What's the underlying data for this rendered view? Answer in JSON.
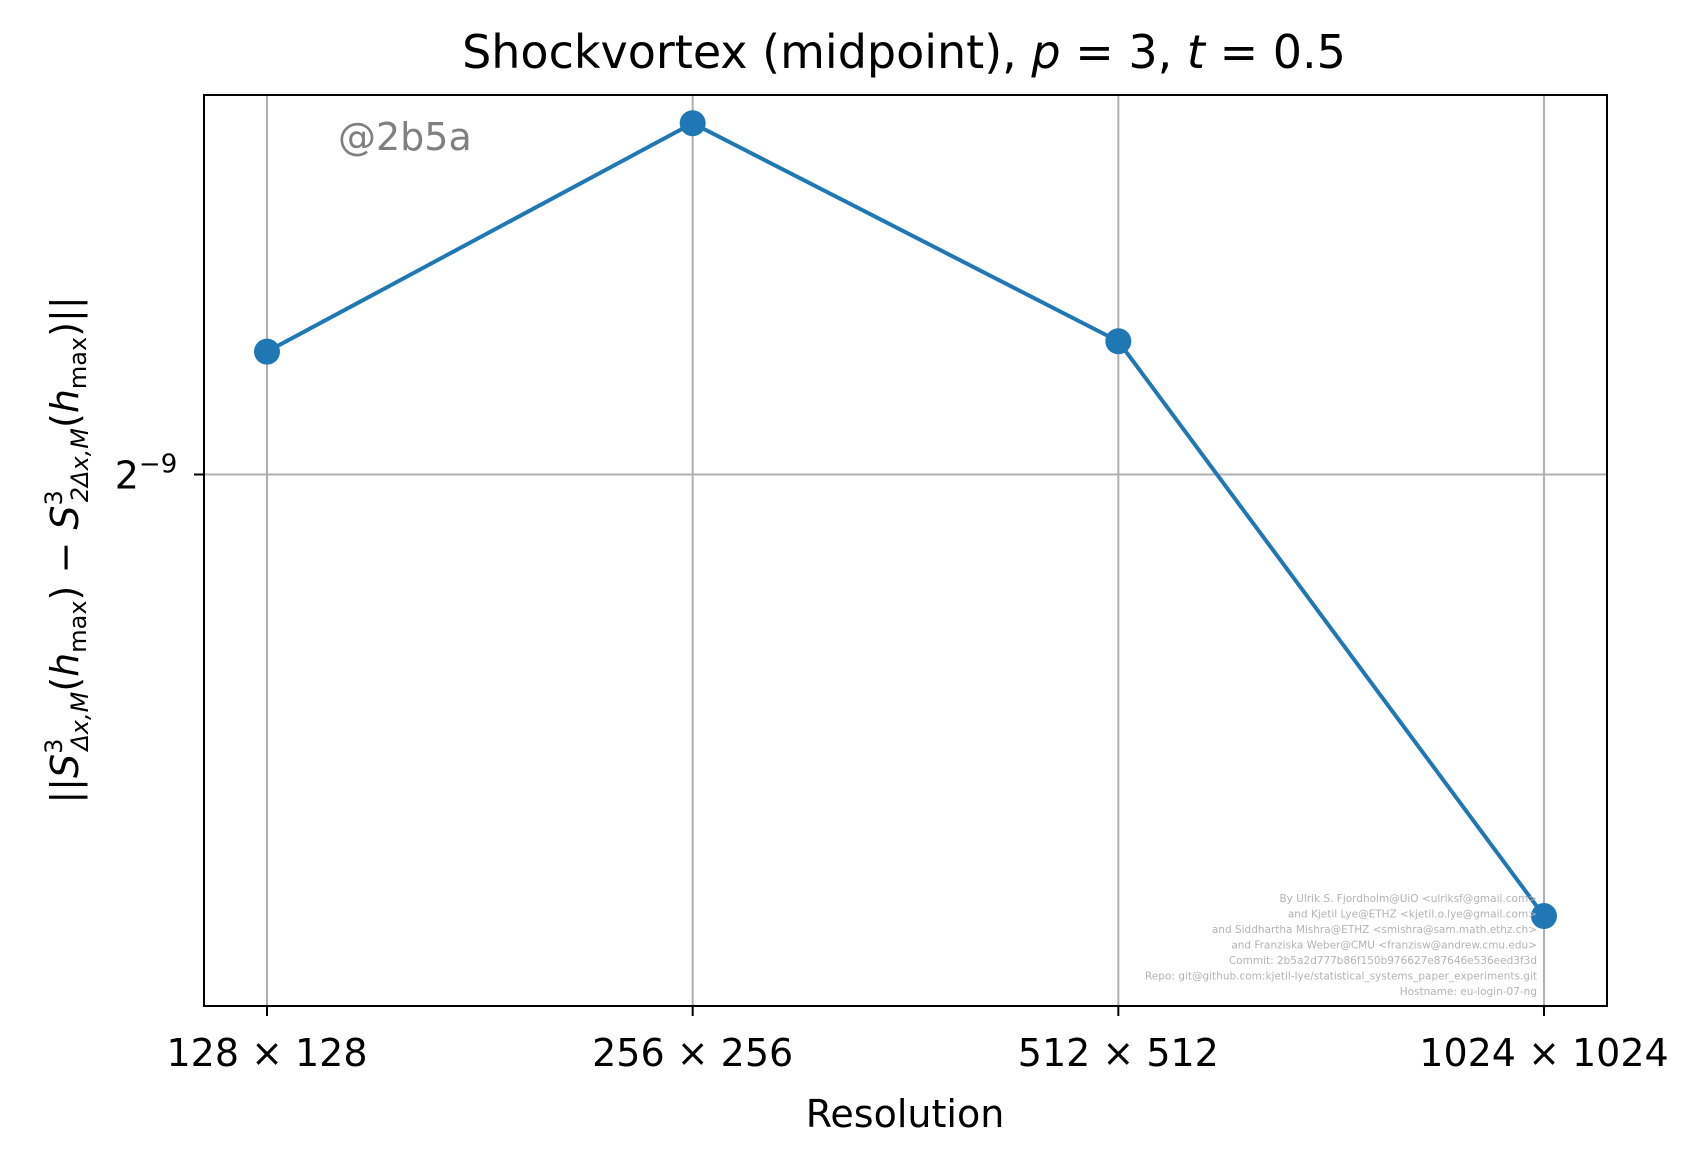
{
  "chart_data": {
    "type": "line",
    "title": "Shockvortex (midpoint), p = 3, t = 0.5",
    "title_parts": {
      "text": "Shockvortex (midpoint), ",
      "p": "p",
      "p_eq": " = 3, ",
      "t": "t",
      "t_eq": " = 0.5"
    },
    "xlabel": "Resolution",
    "ylabel": "||S³Δx,M(hmax) − S³2Δx,M(hmax)||",
    "categories": [
      "128 × 128",
      "256 × 256",
      "512 × 512",
      "1024 × 1024"
    ],
    "y_scale": "log2",
    "yticks": [
      {
        "value": 0.001953125,
        "base": "2",
        "exponent": "−9"
      }
    ],
    "ylim": [
      0.001,
      0.00315
    ],
    "series": [
      {
        "values": [
          0.00228,
          0.00304,
          0.00231,
          0.00112
        ],
        "color": "#1f77b4",
        "marker": "circle"
      }
    ],
    "grid": true,
    "annotation": "@2b5a",
    "credits": [
      "By Ulrik S. Fjordholm@UiO <ulriksf@gmail.com>",
      "and Kjetil Lye@ETHZ <kjetil.o.lye@gmail.com>",
      "and Siddhartha Mishra@ETHZ <smishra@sam.math.ethz.ch>",
      "and Franziska Weber@CMU <franzisw@andrew.cmu.edu>",
      "Commit: 2b5a2d777b86f150b976627e87646e536eed3f3d",
      "Repo: git@github.com:kjetil-lye/statistical_systems_paper_experiments.git",
      "Hostname: eu-login-07-ng"
    ]
  }
}
